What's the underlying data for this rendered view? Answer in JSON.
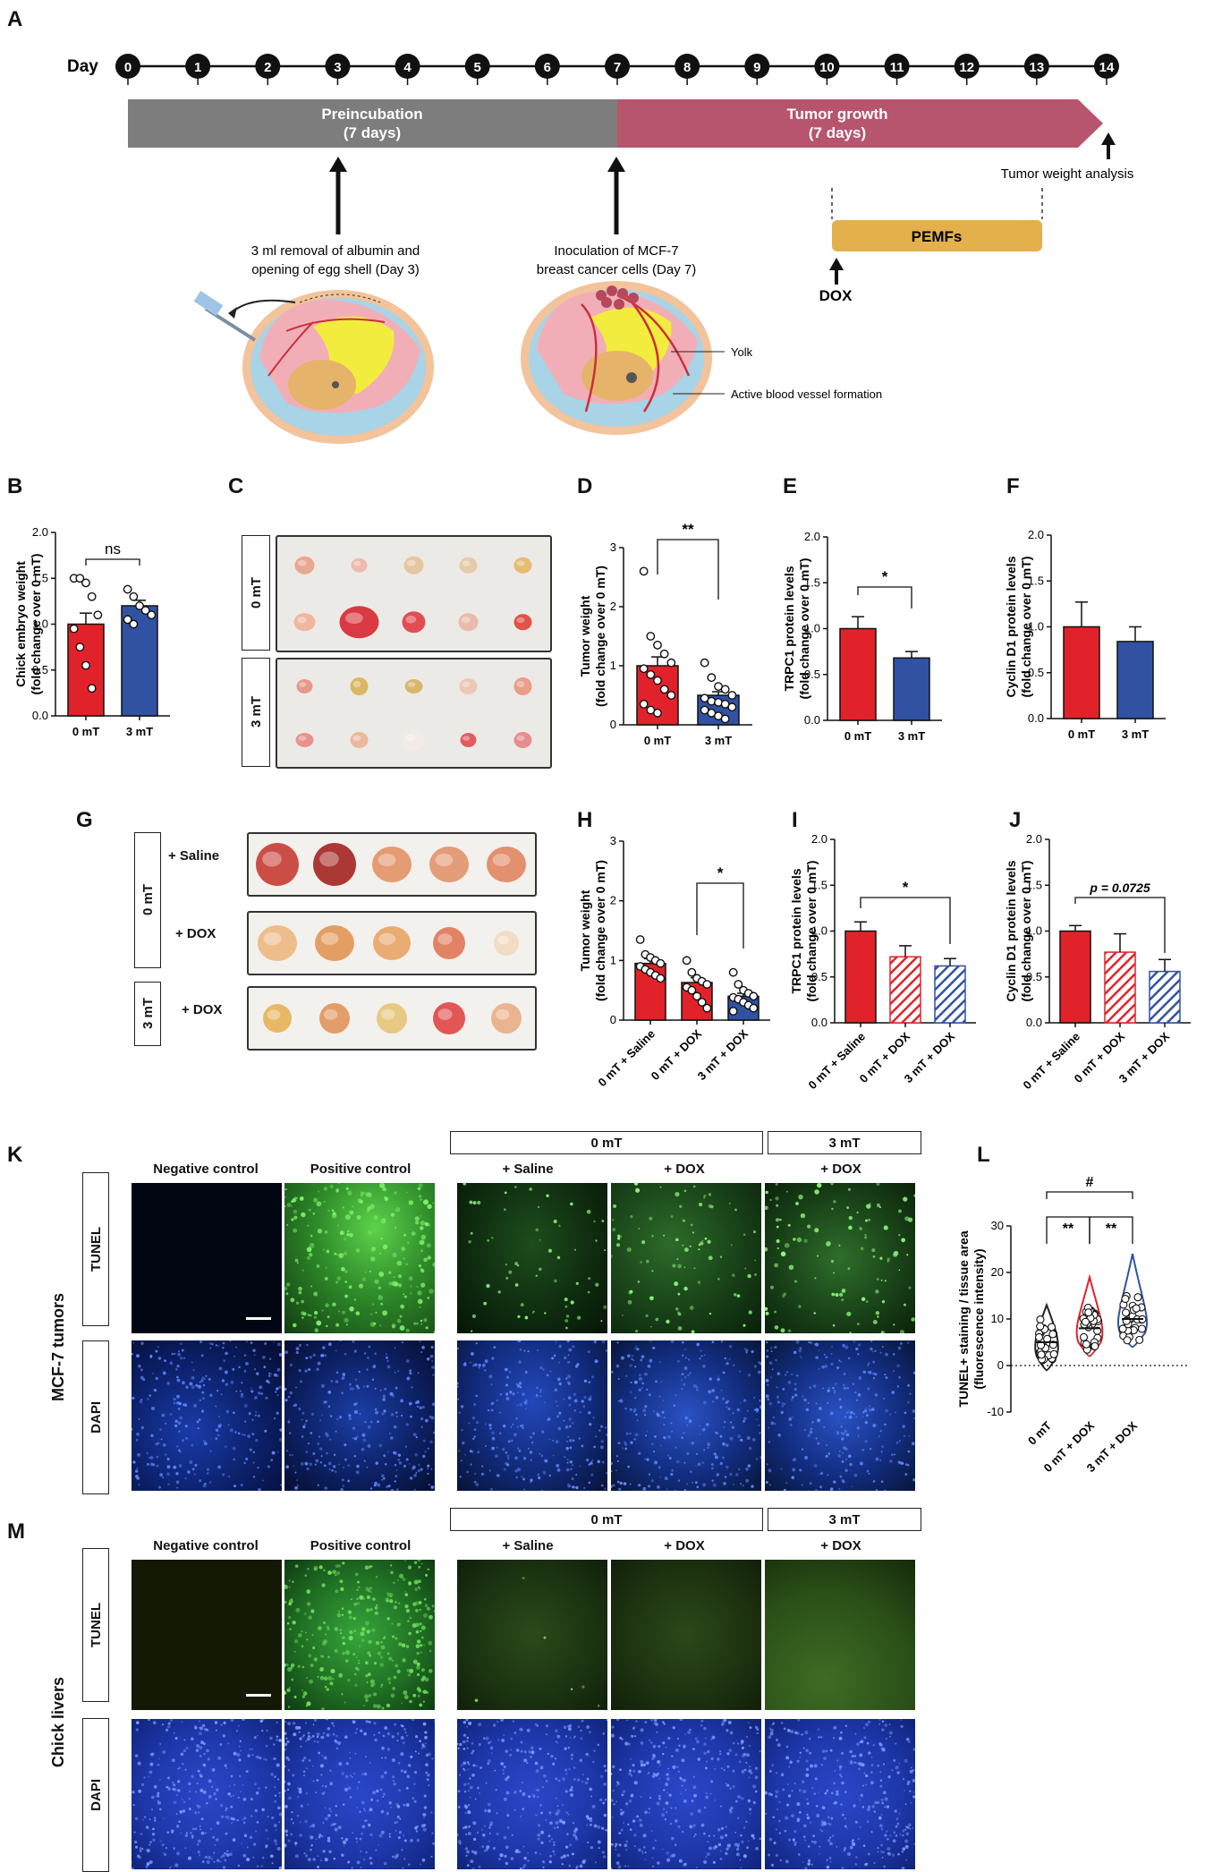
{
  "panels": {
    "A": "A",
    "B": "B",
    "C": "C",
    "D": "D",
    "E": "E",
    "F": "F",
    "G": "G",
    "H": "H",
    "I": "I",
    "J": "J",
    "K": "K",
    "L": "L",
    "M": "M"
  },
  "timeline": {
    "day_label": "Day",
    "days": [
      "0",
      "1",
      "2",
      "3",
      "4",
      "5",
      "6",
      "7",
      "8",
      "9",
      "10",
      "11",
      "12",
      "13",
      "14"
    ],
    "preincubation": [
      "Preincubation",
      "(7 days)"
    ],
    "tumor_growth": [
      "Tumor growth",
      "(7 days)"
    ],
    "tumor_weight_analysis": "Tumor weight analysis",
    "pemfs": "PEMFs",
    "dox": "DOX",
    "step1": [
      "3 ml removal of albumin and",
      "opening of egg shell (Day 3)"
    ],
    "step2": [
      "Inoculation of MCF-7",
      "breast cancer cells (Day 7)"
    ],
    "yolk": "Yolk",
    "vessel": "Active blood vessel formation",
    "colors": {
      "pre": "#7d7d7d",
      "growth": "#b8556e",
      "pemf": "#e4b04b"
    }
  },
  "tray_c": {
    "row0": "0 mT",
    "row1": "3 mT"
  },
  "tray_g": {
    "row0": "0 mT",
    "row1": "3 mT",
    "saline": "+ Saline",
    "dox1": "+ DOX",
    "dox2": "+ DOX"
  },
  "microscopy": {
    "k_side": "MCF-7 tumors",
    "m_side": "Chick livers",
    "tunel": "TUNEL",
    "dapi": "DAPI",
    "neg": "Negative control",
    "pos": "Positive control",
    "saline": "+ Saline",
    "dox": "+ DOX",
    "dox2": "+ DOX",
    "g0": "0 mT",
    "g3": "3 mT"
  },
  "chart_data": [
    {
      "id": "B",
      "type": "bar",
      "categories": [
        "0 mT",
        "3 mT"
      ],
      "values": [
        1.0,
        1.2
      ],
      "errors": [
        0.12,
        0.06
      ],
      "points": [
        [
          1.5,
          1.5,
          1.45,
          1.3,
          1.1,
          0.95,
          0.75,
          0.55,
          0.3
        ],
        [
          1.38,
          1.3,
          1.2,
          1.15,
          1.1,
          1.05,
          1.0
        ]
      ],
      "ylabel": [
        "Chick embryo weight",
        "(fold change over 0 mT)"
      ],
      "ylim": [
        0,
        2.0
      ],
      "yticks": [
        "0.0",
        "0.5",
        "1.0",
        "1.5",
        "2.0"
      ],
      "sig": "ns",
      "colors": [
        "#e2222a",
        "#3152a3"
      ]
    },
    {
      "id": "D",
      "type": "bar",
      "categories": [
        "0 mT",
        "3 mT"
      ],
      "values": [
        1.0,
        0.5
      ],
      "errors": [
        0.15,
        0.06
      ],
      "points": [
        [
          2.6,
          1.5,
          1.35,
          1.2,
          1.05,
          0.95,
          0.85,
          0.75,
          0.6,
          0.5,
          0.35,
          0.25,
          0.2
        ],
        [
          1.05,
          0.8,
          0.65,
          0.6,
          0.5,
          0.45,
          0.4,
          0.38,
          0.35,
          0.3,
          0.25,
          0.2,
          0.15,
          0.1
        ]
      ],
      "ylabel": [
        "Tumor weight",
        "(fold change over 0 mT)"
      ],
      "ylim": [
        0,
        3
      ],
      "yticks": [
        "0",
        "1",
        "2",
        "3"
      ],
      "sig": "**",
      "colors": [
        "#e2222a",
        "#3152a3"
      ]
    },
    {
      "id": "E",
      "type": "bar",
      "categories": [
        "0 mT",
        "3 mT"
      ],
      "values": [
        1.0,
        0.68
      ],
      "errors": [
        0.13,
        0.07
      ],
      "ylabel": [
        "TRPC1 protein levels",
        "(fold change over 0 mT)"
      ],
      "ylim": [
        0,
        2.0
      ],
      "yticks": [
        "0.0",
        "0.5",
        "1.0",
        "1.5",
        "2.0"
      ],
      "sig": "*",
      "colors": [
        "#e2222a",
        "#3152a3"
      ]
    },
    {
      "id": "F",
      "type": "bar",
      "categories": [
        "0 mT",
        "3 mT"
      ],
      "values": [
        1.0,
        0.84
      ],
      "errors": [
        0.27,
        0.16
      ],
      "ylabel": [
        "Cyclin D1 protein levels",
        "(fold change over 0 mT)"
      ],
      "ylim": [
        0,
        2.0
      ],
      "yticks": [
        "0.0",
        "0.5",
        "1.0",
        "1.5",
        "2.0"
      ],
      "sig": "",
      "colors": [
        "#e2222a",
        "#3152a3"
      ]
    },
    {
      "id": "H",
      "type": "bar",
      "categories": [
        "0 mT + Saline",
        "0 mT + DOX",
        "3 mT + DOX"
      ],
      "values": [
        0.95,
        0.63,
        0.4
      ],
      "errors": [
        0.08,
        0.08,
        0.05
      ],
      "points": [
        [
          1.35,
          1.1,
          1.05,
          1.0,
          0.95,
          0.9,
          0.85,
          0.8,
          0.75,
          0.7
        ],
        [
          1.0,
          0.8,
          0.7,
          0.65,
          0.6,
          0.55,
          0.5,
          0.4,
          0.3,
          0.2
        ],
        [
          0.8,
          0.6,
          0.5,
          0.45,
          0.4,
          0.38,
          0.35,
          0.3,
          0.25,
          0.2,
          0.15
        ]
      ],
      "ylabel": [
        "Tumor weight",
        "(fold change over 0 mT)"
      ],
      "ylim": [
        0,
        3
      ],
      "yticks": [
        "0",
        "1",
        "2",
        "3"
      ],
      "sig": "*",
      "colors": [
        "#e2222a",
        "#e2222a",
        "#3152a3"
      ]
    },
    {
      "id": "I",
      "type": "bar",
      "categories": [
        "0 mT + Saline",
        "0 mT + DOX",
        "3 mT + DOX"
      ],
      "values": [
        1.0,
        0.72,
        0.62
      ],
      "errors": [
        0.1,
        0.12,
        0.08
      ],
      "ylabel": [
        "TRPC1 protein levels",
        "(fold change over 0 mT)"
      ],
      "ylim": [
        0,
        2.0
      ],
      "yticks": [
        "0.0",
        "0.5",
        "1.0",
        "1.5",
        "2.0"
      ],
      "sig": "*",
      "colors": [
        "#e2222a",
        "#e2222a",
        "#3152a3"
      ]
    },
    {
      "id": "J",
      "type": "bar",
      "categories": [
        "0 mT + Saline",
        "0 mT + DOX",
        "3 mT + DOX"
      ],
      "values": [
        1.0,
        0.77,
        0.56
      ],
      "errors": [
        0.06,
        0.2,
        0.13
      ],
      "ylabel": [
        "Cyclin D1 protein levels",
        "(fold change over 0 mT)"
      ],
      "ylim": [
        0,
        2.0
      ],
      "yticks": [
        "0.0",
        "0.5",
        "1.0",
        "1.5",
        "2.0"
      ],
      "sig": "p = 0.0725",
      "colors": [
        "#e2222a",
        "#e2222a",
        "#3152a3"
      ]
    },
    {
      "id": "L",
      "type": "violin",
      "categories": [
        "0 mT",
        "0 mT + DOX",
        "3 mT + DOX"
      ],
      "medians": [
        5,
        8,
        10
      ],
      "ylabel": [
        "TUNEL+ staining / tissue area",
        "(fluorescence intensity)"
      ],
      "ylim": [
        -10,
        30
      ],
      "yticks": [
        "-10",
        "0",
        "10",
        "20",
        "30"
      ],
      "sig": [
        "**",
        "**",
        "#"
      ],
      "colors": [
        "#222222",
        "#e2222a",
        "#3152a3"
      ]
    }
  ]
}
